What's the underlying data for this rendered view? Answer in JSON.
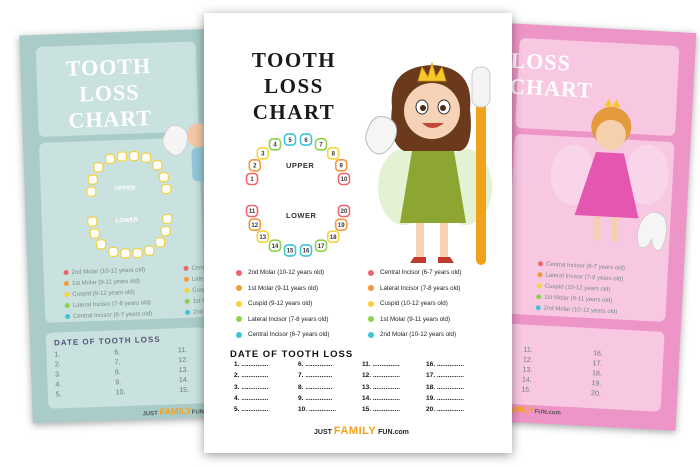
{
  "left_sheet": {
    "title": "TOOTH LOSS CHART",
    "legend": [
      "2nd Molar (10-12 years old)",
      "1st Molar (9-11 years old)",
      "Cuspid (9-12 years old)",
      "Lateral Incisor (7-8 years old)",
      "Central Incisor (6-7 years old)"
    ],
    "legend_right": [
      "Centr",
      "Later",
      "Cusp",
      "1st M",
      "2nd"
    ],
    "date_title": "DATE OF TOOTH LOSS",
    "dates": [
      [
        "1.",
        "2.",
        "3.",
        "4.",
        "5."
      ],
      [
        "6.",
        "7.",
        "8.",
        "9.",
        "10."
      ],
      [
        "11.",
        "12.",
        "13.",
        "14.",
        "15."
      ]
    ],
    "upper_label": "UPPER",
    "lower_label": "LOWER",
    "logo_pre": "JUST",
    "logo_main": "FAMILY",
    "logo_post": "FUN"
  },
  "right_sheet": {
    "title": "LOSS CHART",
    "legend": [
      "Central Incisor (6-7 years old)",
      "Lateral Incisor (7-8 years old)",
      "Cuspid (10-12 years old)",
      "1st Molar (9-11 years old)",
      "2nd Molar (10-12 years old)"
    ],
    "dates": [
      [
        "11.",
        "12.",
        "13.",
        "14.",
        "15."
      ],
      [
        "16.",
        "17.",
        "18.",
        "19.",
        "20."
      ]
    ],
    "logo_main": "FAMILY",
    "logo_post": "FUN.com"
  },
  "center_sheet": {
    "title_line1": "TOOTH LOSS",
    "title_line2": "CHART",
    "upper_label": "UPPER",
    "lower_label": "LOWER",
    "upper_teeth": [
      "1",
      "2",
      "3",
      "4",
      "5",
      "6",
      "7",
      "8",
      "9",
      "10"
    ],
    "lower_teeth": [
      "11",
      "12",
      "13",
      "14",
      "15",
      "16",
      "17",
      "18",
      "19",
      "20"
    ],
    "legend_left": [
      {
        "label": "2nd Molar (10-12 years old)",
        "color": "#f0646e"
      },
      {
        "label": "1st Molar (9-11 years old)",
        "color": "#f29a3a"
      },
      {
        "label": "Cuspid (9-12 years old)",
        "color": "#f6d23c"
      },
      {
        "label": "Lateral Incisor (7-8 years old)",
        "color": "#8fd14f"
      },
      {
        "label": "Central Incisor (6-7 years old)",
        "color": "#3cc6d6"
      }
    ],
    "legend_right": [
      {
        "label": "Central Incisor (6-7 years old)",
        "color": "#f0646e"
      },
      {
        "label": "Lateral Incisor (7-8 years old)",
        "color": "#f29a3a"
      },
      {
        "label": "Cuspid (10-12 years old)",
        "color": "#f6d23c"
      },
      {
        "label": "1st Molar (9-11 years old)",
        "color": "#8fd14f"
      },
      {
        "label": "2nd Molar (10-12 years old)",
        "color": "#3cc6d6"
      }
    ],
    "date_title": "DATE OF TOOTH LOSS",
    "date_columns": [
      [
        "1. ...............",
        "2. ...............",
        "3. ...............",
        "4. ...............",
        "5. ..............."
      ],
      [
        "6. ...............",
        "7. ...............",
        "8. ...............",
        "9. ...............",
        "10. ..............."
      ],
      [
        "11. ...............",
        "12. ...............",
        "13. ...............",
        "14. ...............",
        "15. ..............."
      ],
      [
        "16. ...............",
        "17. ...............",
        "18. ...............",
        "19. ...............",
        "20. ..............."
      ]
    ],
    "logo_pre": "JUST",
    "logo_main": "FAMILY",
    "logo_post": "FUN.com"
  }
}
